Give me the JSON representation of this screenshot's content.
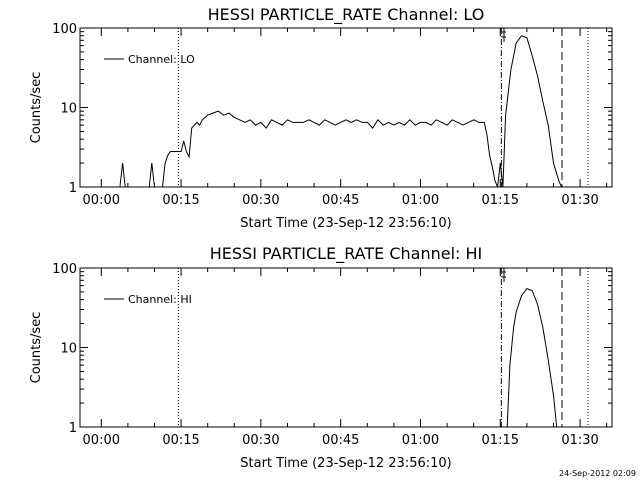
{
  "chart_data": [
    {
      "type": "line",
      "title": "HESSI PARTICLE_RATE Channel: LO",
      "xlabel": "Start Time (23-Sep-12 23:56:10)",
      "ylabel": "Counts/sec",
      "yscale": "log",
      "ylim": [
        1,
        100
      ],
      "xlim_minutes": [
        -4,
        96
      ],
      "xticks": [
        "00:00",
        "00:15",
        "00:30",
        "00:45",
        "01:00",
        "01:15",
        "01:30"
      ],
      "yticks": [
        "1",
        "10",
        "100"
      ],
      "grid": false,
      "legend_position": "top-left",
      "series": [
        {
          "name": "Channel: LO",
          "x": [
            3.5,
            4.0,
            4.5,
            9.0,
            9.5,
            10.0,
            11.5,
            12.0,
            12.5,
            13.0,
            13.5,
            14.0,
            14.5,
            15.0,
            15.5,
            16.0,
            16.5,
            17.0,
            17.5,
            18.0,
            18.5,
            19.0,
            19.5,
            20.0,
            21.0,
            22.0,
            23.0,
            24.0,
            25.0,
            26.0,
            27.0,
            28.0,
            29.0,
            30.0,
            31.0,
            32.0,
            33.0,
            34.0,
            35.0,
            36.0,
            37.0,
            38.0,
            39.0,
            40.0,
            41.0,
            42.0,
            43.0,
            44.0,
            45.0,
            46.0,
            47.0,
            48.0,
            49.0,
            50.0,
            51.0,
            52.0,
            53.0,
            54.0,
            55.0,
            56.0,
            57.0,
            58.0,
            59.0,
            60.0,
            61.0,
            62.0,
            63.0,
            64.0,
            65.0,
            66.0,
            67.0,
            68.0,
            69.0,
            70.0,
            71.0,
            72.0,
            72.5,
            73.0,
            73.5,
            74.0,
            74.5,
            75.0,
            75.5,
            76.0,
            77.0,
            78.0,
            79.0,
            80.0,
            81.0,
            82.0,
            83.0,
            84.0,
            85.0,
            86.0,
            86.5
          ],
          "y": [
            1,
            2,
            1,
            1,
            2,
            1,
            1,
            2,
            2.5,
            2.8,
            2.8,
            2.8,
            2.8,
            2.8,
            3.8,
            2.8,
            2.4,
            5.5,
            6.0,
            6.5,
            6.0,
            7.0,
            7.5,
            8.0,
            8.5,
            9.0,
            8.0,
            8.5,
            7.5,
            7.0,
            6.5,
            7.0,
            6.0,
            6.5,
            5.5,
            7.0,
            6.5,
            6.0,
            7.0,
            6.5,
            6.5,
            6.5,
            7.0,
            6.5,
            6.0,
            7.0,
            6.5,
            6.0,
            6.5,
            7.0,
            6.5,
            7.0,
            6.5,
            6.5,
            5.5,
            7.0,
            6.0,
            6.5,
            6.0,
            6.5,
            6.0,
            7.0,
            6.0,
            6.5,
            6.5,
            6.0,
            7.0,
            6.5,
            6.0,
            7.0,
            6.5,
            6.0,
            6.5,
            7.0,
            6.5,
            6.5,
            4.5,
            2.5,
            1.8,
            1.2,
            1.0,
            2.0,
            1.0,
            8.0,
            30.0,
            65.0,
            80.0,
            75.0,
            45.0,
            25.0,
            12.0,
            6.0,
            2.0,
            1.2,
            1.0
          ]
        }
      ],
      "vlines": [
        {
          "x_minute": 14.5,
          "style": "dotted"
        },
        {
          "x_minute": 75.2,
          "style": "dashdot"
        },
        {
          "x_minute": 75.7,
          "style": "solid-short"
        },
        {
          "x_minute": 86.6,
          "style": "dashed"
        },
        {
          "x_minute": 91.5,
          "style": "dotted"
        }
      ]
    },
    {
      "type": "line",
      "title": "HESSI PARTICLE_RATE Channel: HI",
      "xlabel": "Start Time (23-Sep-12 23:56:10)",
      "ylabel": "Counts/sec",
      "yscale": "log",
      "ylim": [
        1,
        100
      ],
      "xlim_minutes": [
        -4,
        96
      ],
      "xticks": [
        "00:00",
        "00:15",
        "00:30",
        "00:45",
        "01:00",
        "01:15",
        "01:30"
      ],
      "yticks": [
        "1",
        "10",
        "100"
      ],
      "grid": false,
      "legend_position": "top-left",
      "series": [
        {
          "name": "Channel: HI",
          "x": [
            76.3,
            76.8,
            77.5,
            78.0,
            79.0,
            80.0,
            81.0,
            82.0,
            83.0,
            84.0,
            85.0,
            85.6
          ],
          "y": [
            1.0,
            6.0,
            18.0,
            28.0,
            45.0,
            55.0,
            52.0,
            35.0,
            18.0,
            7.0,
            2.5,
            1.0
          ]
        }
      ],
      "vlines": [
        {
          "x_minute": 14.5,
          "style": "dotted"
        },
        {
          "x_minute": 75.2,
          "style": "dashdot"
        },
        {
          "x_minute": 75.7,
          "style": "solid-short"
        },
        {
          "x_minute": 86.6,
          "style": "dashed"
        },
        {
          "x_minute": 91.5,
          "style": "dotted"
        }
      ]
    }
  ],
  "footer": {
    "timestamp": "24-Sep-2012 02:09"
  }
}
